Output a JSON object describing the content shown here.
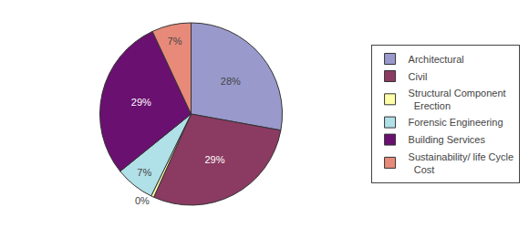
{
  "chart_data": {
    "type": "pie",
    "categories": [
      "Architectural",
      "Civil",
      "Structural Component\n  Erection",
      "Forensic Engineering",
      "Building Services",
      "Sustainability/ life Cycle\n  Cost"
    ],
    "values": [
      28,
      29,
      0.5,
      7,
      29,
      7
    ],
    "value_labels": [
      "28%",
      "29%",
      "0%",
      "7%",
      "29%",
      "7%"
    ],
    "colors": [
      "#9999CC",
      "#8B3A62",
      "#FFFFAA",
      "#B0E0E8",
      "#6A1070",
      "#E88A7A"
    ],
    "data_labels": true,
    "legend": "right"
  }
}
